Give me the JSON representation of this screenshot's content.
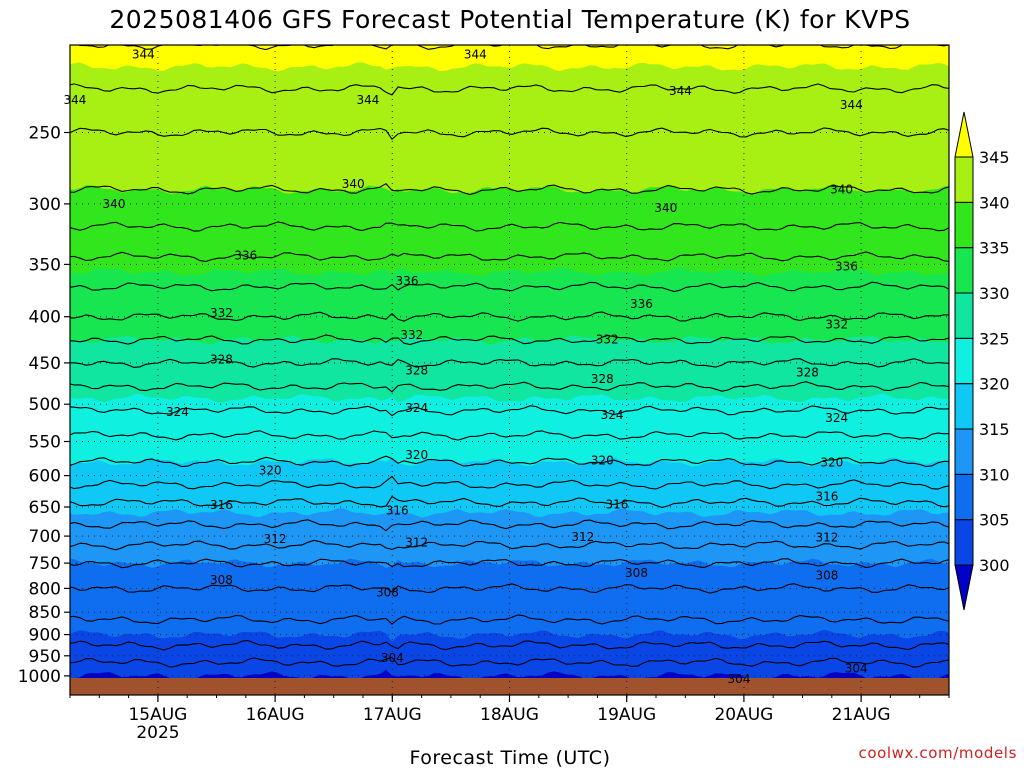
{
  "chart_data": {
    "type": "heatmap",
    "title": "2025081406 GFS Forecast Potential Temperature (K) for KVPS",
    "xlabel": "Forecast Time (UTC)",
    "ylabel": "",
    "credit": "coolwx.com/models",
    "units": "K",
    "y_axis": {
      "label": "",
      "scale": "log",
      "inverted": true,
      "ylim": [
        200,
        1050
      ],
      "ticks": [
        250,
        300,
        350,
        400,
        450,
        500,
        550,
        600,
        650,
        700,
        750,
        800,
        850,
        900,
        950,
        1000
      ],
      "tick_labels": [
        "250",
        "300",
        "350",
        "400",
        "450",
        "500",
        "550",
        "600",
        "650",
        "700",
        "750",
        "800",
        "850",
        "900",
        "950",
        "1000"
      ]
    },
    "x_axis": {
      "xlim": [
        0,
        180
      ],
      "tick_hours": [
        18,
        42,
        66,
        90,
        114,
        138,
        162
      ],
      "tick_labels": [
        "15AUG",
        "16AUG",
        "17AUG",
        "18AUG",
        "19AUG",
        "20AUG",
        "21AUG"
      ],
      "year_label": "2025"
    },
    "grid": true,
    "colorbar": {
      "levels": [
        300,
        305,
        310,
        315,
        320,
        325,
        330,
        335,
        340,
        345
      ],
      "labels": [
        "300",
        "305",
        "310",
        "315",
        "320",
        "325",
        "330",
        "335",
        "340",
        "345"
      ],
      "colors": [
        "#0a0adc",
        "#0a46e6",
        "#0f6ef0",
        "#1e96f5",
        "#10c8f5",
        "#10f0e0",
        "#10e6a0",
        "#18e650",
        "#32e61e",
        "#a8f014",
        "#ffff00"
      ],
      "under_color": "#0000c8",
      "over_color": "#ffff00"
    },
    "profile": [
      {
        "pressure": 1000,
        "theta": 300
      },
      {
        "pressure": 950,
        "theta": 303
      },
      {
        "pressure": 900,
        "theta": 305
      },
      {
        "pressure": 850,
        "theta": 306.5
      },
      {
        "pressure": 800,
        "theta": 308
      },
      {
        "pressure": 750,
        "theta": 310
      },
      {
        "pressure": 700,
        "theta": 313
      },
      {
        "pressure": 650,
        "theta": 315.5
      },
      {
        "pressure": 600,
        "theta": 319
      },
      {
        "pressure": 550,
        "theta": 321.5
      },
      {
        "pressure": 500,
        "theta": 324.5
      },
      {
        "pressure": 450,
        "theta": 328
      },
      {
        "pressure": 400,
        "theta": 332
      },
      {
        "pressure": 350,
        "theta": 335.5
      },
      {
        "pressure": 300,
        "theta": 339.5
      },
      {
        "pressure": 250,
        "theta": 342
      },
      {
        "pressure": 200,
        "theta": 346
      }
    ],
    "contour_labels": [
      {
        "text": "344",
        "hour": 15,
        "pressure": 205
      },
      {
        "text": "344",
        "hour": 1,
        "pressure": 230
      },
      {
        "text": "344",
        "hour": 61,
        "pressure": 230
      },
      {
        "text": "344",
        "hour": 83,
        "pressure": 205
      },
      {
        "text": "344",
        "hour": 125,
        "pressure": 225
      },
      {
        "text": "344",
        "hour": 160,
        "pressure": 233
      },
      {
        "text": "340",
        "hour": 58,
        "pressure": 285
      },
      {
        "text": "340",
        "hour": 9,
        "pressure": 300
      },
      {
        "text": "340",
        "hour": 122,
        "pressure": 303
      },
      {
        "text": "340",
        "hour": 158,
        "pressure": 289
      },
      {
        "text": "336",
        "hour": 36,
        "pressure": 342
      },
      {
        "text": "336",
        "hour": 69,
        "pressure": 365
      },
      {
        "text": "336",
        "hour": 117,
        "pressure": 387
      },
      {
        "text": "336",
        "hour": 159,
        "pressure": 352
      },
      {
        "text": "332",
        "hour": 31,
        "pressure": 396
      },
      {
        "text": "332",
        "hour": 70,
        "pressure": 419
      },
      {
        "text": "332",
        "hour": 110,
        "pressure": 424
      },
      {
        "text": "332",
        "hour": 157,
        "pressure": 408
      },
      {
        "text": "328",
        "hour": 31,
        "pressure": 446
      },
      {
        "text": "328",
        "hour": 71,
        "pressure": 459
      },
      {
        "text": "328",
        "hour": 109,
        "pressure": 469
      },
      {
        "text": "328",
        "hour": 151,
        "pressure": 461
      },
      {
        "text": "324",
        "hour": 22,
        "pressure": 510
      },
      {
        "text": "324",
        "hour": 71,
        "pressure": 505
      },
      {
        "text": "324",
        "hour": 111,
        "pressure": 514
      },
      {
        "text": "324",
        "hour": 157,
        "pressure": 518
      },
      {
        "text": "320",
        "hour": 41,
        "pressure": 592
      },
      {
        "text": "320",
        "hour": 71,
        "pressure": 569
      },
      {
        "text": "320",
        "hour": 109,
        "pressure": 577
      },
      {
        "text": "320",
        "hour": 156,
        "pressure": 580
      },
      {
        "text": "316",
        "hour": 31,
        "pressure": 647
      },
      {
        "text": "316",
        "hour": 67,
        "pressure": 656
      },
      {
        "text": "316",
        "hour": 112,
        "pressure": 646
      },
      {
        "text": "316",
        "hour": 155,
        "pressure": 633
      },
      {
        "text": "312",
        "hour": 42,
        "pressure": 705
      },
      {
        "text": "312",
        "hour": 71,
        "pressure": 712
      },
      {
        "text": "312",
        "hour": 105,
        "pressure": 702
      },
      {
        "text": "312",
        "hour": 155,
        "pressure": 703
      },
      {
        "text": "308",
        "hour": 31,
        "pressure": 783
      },
      {
        "text": "308",
        "hour": 65,
        "pressure": 808
      },
      {
        "text": "308",
        "hour": 116,
        "pressure": 769
      },
      {
        "text": "308",
        "hour": 155,
        "pressure": 774
      },
      {
        "text": "304",
        "hour": 66,
        "pressure": 955
      },
      {
        "text": "304",
        "hour": 137,
        "pressure": 1008
      },
      {
        "text": "304",
        "hour": 161,
        "pressure": 981
      }
    ]
  }
}
